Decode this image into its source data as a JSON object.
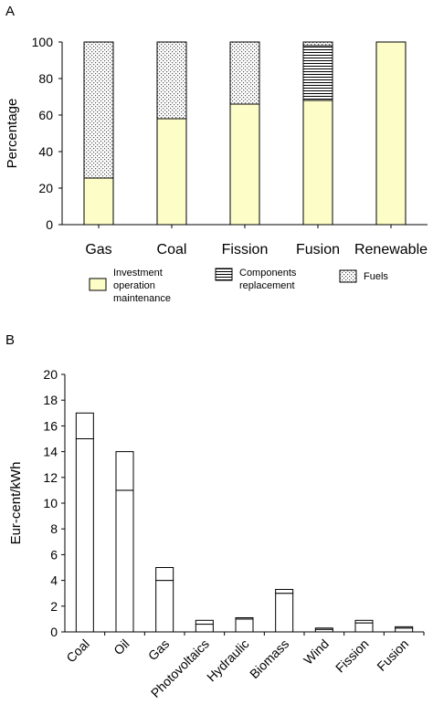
{
  "chart_data": [
    {
      "panel": "A",
      "type": "bar",
      "stacked": true,
      "ylabel": "Percentage",
      "ylim": [
        0,
        100
      ],
      "yticks": [
        0,
        20,
        40,
        60,
        80,
        100
      ],
      "categories": [
        "Gas",
        "Coal",
        "Fission",
        "Fusion",
        "Renewable"
      ],
      "series": [
        {
          "name": "Investment\noperation\nmaintenance",
          "values": [
            25.5,
            58,
            66,
            68,
            100
          ],
          "fill": "#fdfdc8",
          "pattern": "solid"
        },
        {
          "name": "Components\nreplacement",
          "values": [
            0,
            0,
            0,
            30,
            0
          ],
          "fill": "#ffffff",
          "pattern": "horizontal-lines"
        },
        {
          "name": "Fuels",
          "values": [
            74.5,
            42,
            34,
            2,
            0
          ],
          "fill": "#ffffff",
          "pattern": "dots"
        }
      ],
      "legend_position": "bottom"
    },
    {
      "panel": "B",
      "type": "bar",
      "stacked": true,
      "ylabel": "Eur-cent/kWh",
      "ylim": [
        0,
        20
      ],
      "yticks": [
        0,
        2,
        4,
        6,
        8,
        10,
        12,
        14,
        16,
        18,
        20
      ],
      "categories": [
        "Coal",
        "Oil",
        "Gas",
        "Photovoltaics",
        "Hydraulic",
        "Biomass",
        "Wind",
        "Fission",
        "Fusion"
      ],
      "series": [
        {
          "values": [
            15,
            11,
            4,
            0.6,
            1.0,
            3.0,
            0.2,
            0.7,
            0.3
          ]
        },
        {
          "values": [
            2,
            3,
            1,
            0.3,
            0.1,
            0.3,
            0.1,
            0.2,
            0.1
          ]
        }
      ]
    }
  ],
  "panel_labels": {
    "a": "A",
    "b": "B"
  }
}
